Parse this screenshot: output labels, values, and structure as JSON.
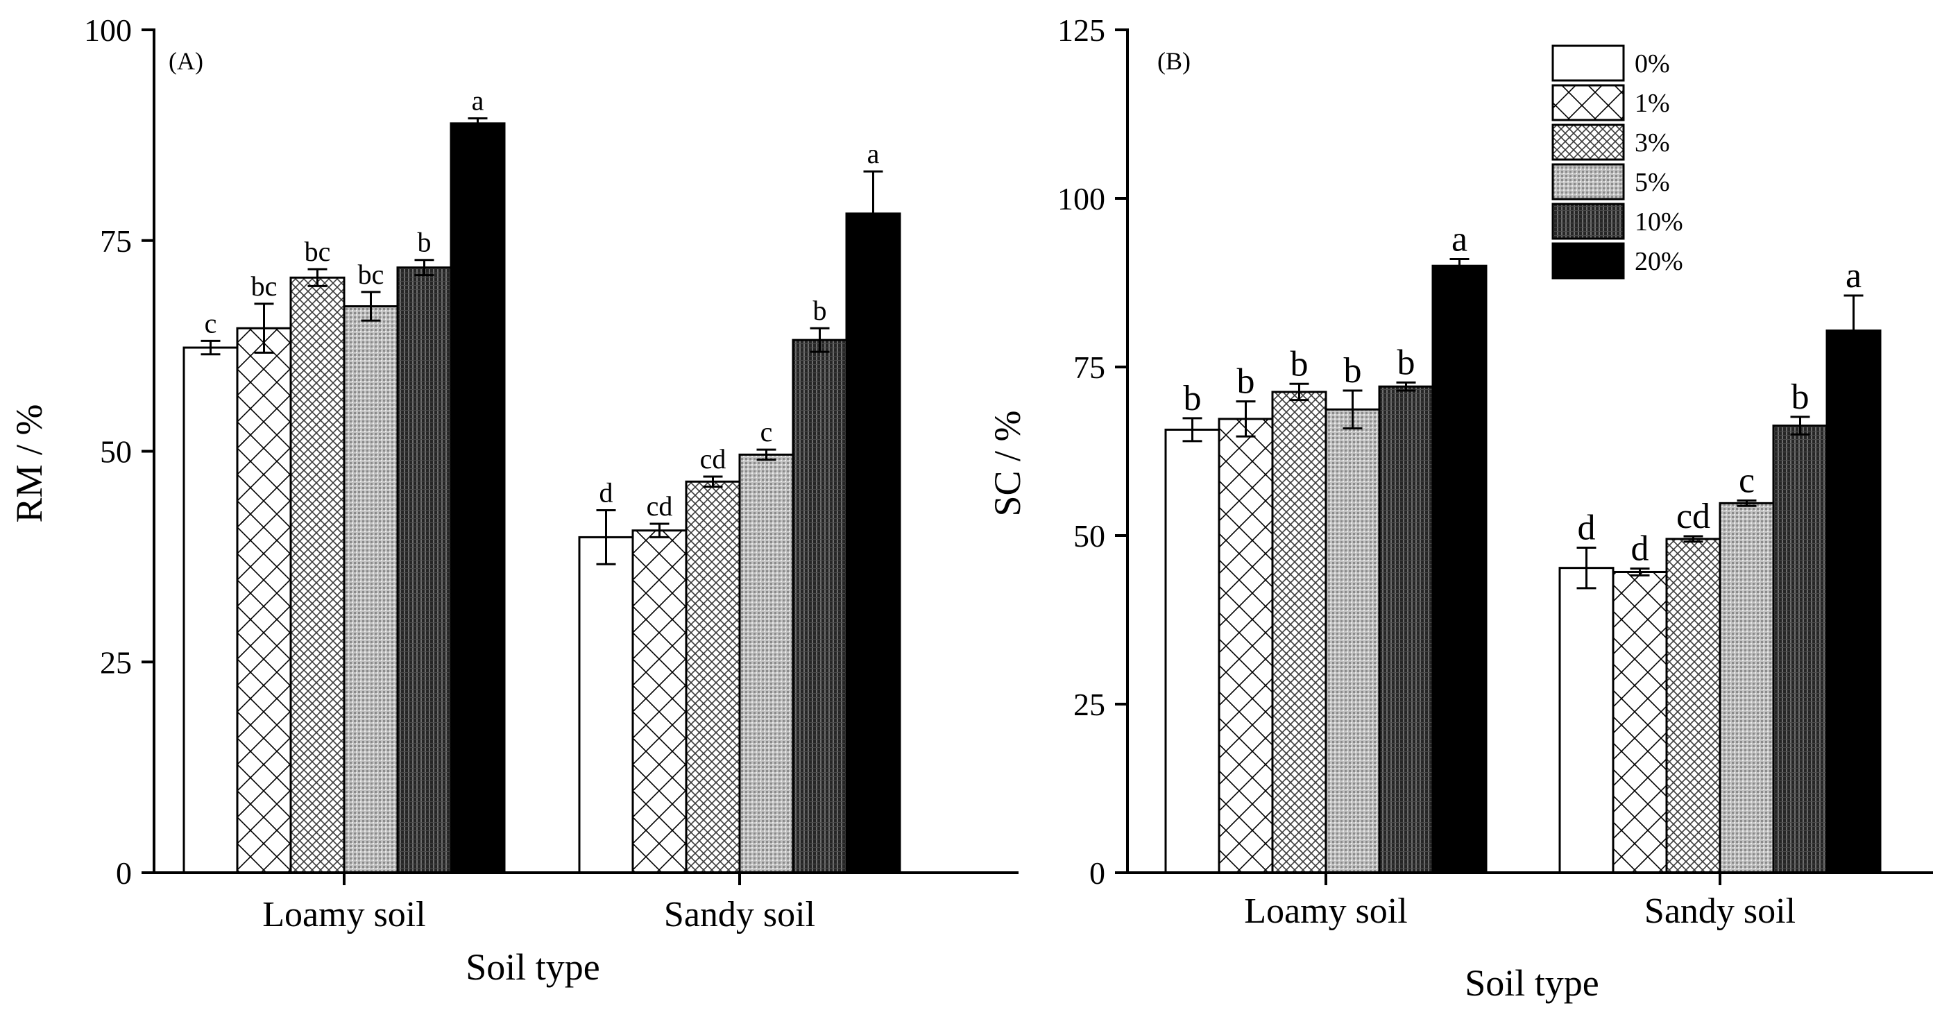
{
  "chart_data": [
    {
      "panel": "(A)",
      "type": "bar",
      "ylabel": "RM / %",
      "xlabel": "Soil type",
      "ylim": [
        0,
        100
      ],
      "yticks": [
        0,
        25,
        50,
        75,
        100
      ],
      "categories": [
        "Loamy soil",
        "Sandy soil"
      ],
      "series": [
        {
          "name": "0%",
          "values": [
            62.3,
            39.8
          ],
          "errors": [
            0.8,
            3.2
          ],
          "letters": [
            "c",
            "d"
          ]
        },
        {
          "name": "1%",
          "values": [
            64.6,
            40.6
          ],
          "errors": [
            2.9,
            0.8
          ],
          "letters": [
            "bc",
            "cd"
          ]
        },
        {
          "name": "3%",
          "values": [
            70.6,
            46.4
          ],
          "errors": [
            1.0,
            0.6
          ],
          "letters": [
            "bc",
            "cd"
          ]
        },
        {
          "name": "5%",
          "values": [
            67.2,
            49.6
          ],
          "errors": [
            1.7,
            0.6
          ],
          "letters": [
            "bc",
            "c"
          ]
        },
        {
          "name": "10%",
          "values": [
            71.8,
            63.2
          ],
          "errors": [
            0.9,
            1.4
          ],
          "letters": [
            "b",
            "b"
          ]
        },
        {
          "name": "20%",
          "values": [
            88.9,
            78.2
          ],
          "errors": [
            0.6,
            5.0
          ],
          "letters": [
            "a",
            "a"
          ]
        }
      ]
    },
    {
      "panel": "(B)",
      "type": "bar",
      "ylabel": "SC / %",
      "xlabel": "Soil type",
      "ylim": [
        0,
        125
      ],
      "yticks": [
        0,
        25,
        50,
        75,
        100,
        125
      ],
      "categories": [
        "Loamy soil",
        "Sandy soil"
      ],
      "legend": [
        "0%",
        "1%",
        "3%",
        "5%",
        "10%",
        "20%"
      ],
      "series": [
        {
          "name": "0%",
          "values": [
            65.7,
            45.2
          ],
          "errors": [
            1.7,
            3.0
          ],
          "letters": [
            "b",
            "d"
          ]
        },
        {
          "name": "1%",
          "values": [
            67.3,
            44.6
          ],
          "errors": [
            2.6,
            0.5
          ],
          "letters": [
            "b",
            "d"
          ]
        },
        {
          "name": "3%",
          "values": [
            71.3,
            49.5
          ],
          "errors": [
            1.2,
            0.4
          ],
          "letters": [
            "b",
            "cd"
          ]
        },
        {
          "name": "5%",
          "values": [
            68.7,
            54.8
          ],
          "errors": [
            2.8,
            0.4
          ],
          "letters": [
            "b",
            "c"
          ]
        },
        {
          "name": "10%",
          "values": [
            72.1,
            66.3
          ],
          "errors": [
            0.6,
            1.3
          ],
          "letters": [
            "b",
            "b"
          ]
        },
        {
          "name": "20%",
          "values": [
            90.0,
            80.4
          ],
          "errors": [
            1.0,
            5.2
          ],
          "letters": [
            "a",
            "a"
          ]
        }
      ]
    }
  ]
}
